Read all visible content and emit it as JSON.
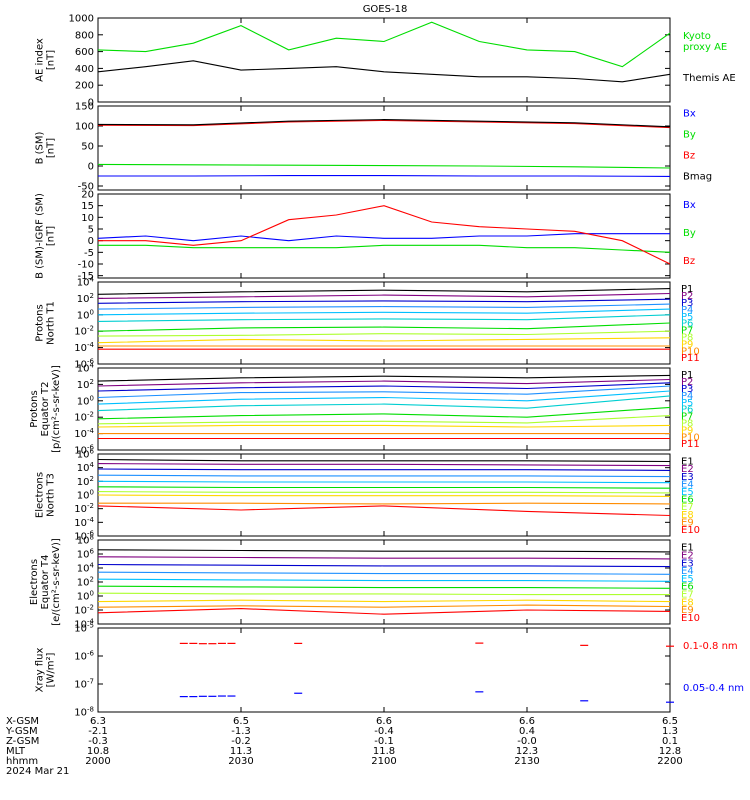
{
  "title": "GOES-18",
  "date": "2024 Mar 21",
  "colors": {
    "black": "#000000",
    "red": "#ff0000",
    "green": "#00dd00",
    "blue": "#0000ff"
  },
  "chart_data": [
    {
      "type": "line",
      "ylabel": [
        "AE index",
        "[nT]"
      ],
      "ylim": [
        0,
        1000
      ],
      "yticks": [
        "0",
        "200",
        "400",
        "600",
        "800",
        "1000"
      ],
      "tick_values": [
        0,
        200,
        400,
        600,
        800,
        1000
      ],
      "x": [
        0,
        5,
        10,
        15,
        20,
        25,
        30,
        35,
        40,
        45,
        50,
        55,
        60
      ],
      "series": [
        {
          "name": "Kyoto proxy AE",
          "label_lines": [
            "Kyoto",
            "proxy AE"
          ],
          "color": "#00dd00",
          "values": [
            620,
            600,
            700,
            910,
            620,
            760,
            720,
            950,
            720,
            620,
            600,
            420,
            820
          ]
        },
        {
          "name": "Themis AE",
          "label_lines": [
            "Themis AE"
          ],
          "color": "#000000",
          "values": [
            360,
            420,
            490,
            380,
            400,
            420,
            360,
            330,
            300,
            300,
            280,
            240,
            330
          ]
        }
      ]
    },
    {
      "type": "line",
      "ylabel": [
        "B (SM)",
        "[nT]"
      ],
      "ylim": [
        -60,
        150
      ],
      "yticks": [
        "-50",
        "0",
        "50",
        "100",
        "150"
      ],
      "tick_values": [
        -50,
        0,
        50,
        100,
        150
      ],
      "x": [
        0,
        10,
        20,
        30,
        40,
        50,
        60
      ],
      "series": [
        {
          "name": "Bx",
          "label_lines": [
            "Bx"
          ],
          "color": "#0000ff",
          "values": [
            -25,
            -25,
            -24,
            -24,
            -25,
            -25,
            -26
          ]
        },
        {
          "name": "By",
          "label_lines": [
            "By"
          ],
          "color": "#00dd00",
          "values": [
            4,
            3,
            2,
            1,
            0,
            -2,
            -5
          ]
        },
        {
          "name": "Bz",
          "label_lines": [
            "Bz"
          ],
          "color": "#ff0000",
          "values": [
            102,
            101,
            110,
            114,
            110,
            106,
            96
          ]
        },
        {
          "name": "Bmag",
          "label_lines": [
            "Bmag"
          ],
          "color": "#000000",
          "values": [
            104,
            103,
            112,
            116,
            112,
            108,
            98
          ]
        }
      ]
    },
    {
      "type": "line",
      "ylabel": [
        "B (SM)-IGRF (SM)",
        "[nT]"
      ],
      "ylim": [
        -16,
        20
      ],
      "yticks": [
        "-15",
        "-10",
        "-5",
        "0",
        "5",
        "10",
        "15",
        "20"
      ],
      "tick_values": [
        -15,
        -10,
        -5,
        0,
        5,
        10,
        15,
        20
      ],
      "x": [
        0,
        5,
        10,
        15,
        20,
        25,
        30,
        35,
        40,
        45,
        50,
        55,
        60
      ],
      "series": [
        {
          "name": "Bx",
          "label_lines": [
            "Bx"
          ],
          "color": "#0000ff",
          "values": [
            1,
            2,
            0,
            2,
            0,
            2,
            1,
            1,
            2,
            2,
            3,
            3,
            3
          ]
        },
        {
          "name": "By",
          "label_lines": [
            "By"
          ],
          "color": "#00dd00",
          "values": [
            -2,
            -2,
            -3,
            -3,
            -3,
            -3,
            -2,
            -2,
            -2,
            -3,
            -3,
            -4,
            -5
          ]
        },
        {
          "name": "Bz",
          "label_lines": [
            "Bz"
          ],
          "color": "#ff0000",
          "values": [
            0,
            0,
            -2,
            0,
            9,
            11,
            15,
            8,
            6,
            5,
            4,
            0,
            -10
          ]
        }
      ]
    },
    {
      "type": "line",
      "logscale": true,
      "ylabel": [
        "Protons",
        "North T1"
      ],
      "ylim": [
        -6,
        4
      ],
      "yticks": [
        "10^4",
        "10^2",
        "10^0",
        "10^-2",
        "10^-4",
        "10^-6"
      ],
      "tick_values": [
        4,
        2,
        0,
        -2,
        -4,
        -6
      ],
      "x": [
        0,
        15,
        30,
        45,
        60
      ],
      "series": [
        {
          "name": "P1",
          "color": "#000000",
          "values": [
            2.5,
            2.8,
            3.0,
            2.8,
            3.2
          ]
        },
        {
          "name": "P2",
          "color": "#800080",
          "values": [
            2.0,
            2.2,
            2.4,
            2.2,
            2.6
          ]
        },
        {
          "name": "P3",
          "color": "#0000cd",
          "values": [
            1.4,
            1.6,
            1.7,
            1.6,
            1.9
          ]
        },
        {
          "name": "P4",
          "color": "#1e90ff",
          "values": [
            0.7,
            0.9,
            1.0,
            0.9,
            1.3
          ]
        },
        {
          "name": "P5",
          "color": "#00bfff",
          "values": [
            0.0,
            0.2,
            0.3,
            0.2,
            0.7
          ]
        },
        {
          "name": "P6",
          "color": "#00ced1",
          "values": [
            -0.8,
            -0.6,
            -0.5,
            -0.6,
            0.0
          ]
        },
        {
          "name": "P7",
          "color": "#00dd00",
          "values": [
            -2.0,
            -1.6,
            -1.5,
            -1.7,
            -1.0
          ]
        },
        {
          "name": "P8",
          "color": "#adff2f",
          "values": [
            -2.6,
            -2.5,
            -2.3,
            -2.4,
            -2.0
          ]
        },
        {
          "name": "P9",
          "color": "#ffd700",
          "values": [
            -3.4,
            -3.0,
            -3.2,
            -3.0,
            -2.8
          ]
        },
        {
          "name": "P10",
          "color": "#ff8c00",
          "values": [
            -3.8,
            -3.8,
            -3.8,
            -3.8,
            -3.8
          ]
        },
        {
          "name": "P11",
          "color": "#ff0000",
          "values": [
            -4.2,
            -4.2,
            -4.2,
            -4.2,
            -4.2
          ]
        }
      ]
    },
    {
      "type": "line",
      "logscale": true,
      "ylabel": [
        "Protons",
        "Equator T2",
        "[p/(cm²-s-sr-keV)]"
      ],
      "ylim": [
        -6,
        4
      ],
      "yticks": [
        "10^4",
        "10^2",
        "10^0",
        "10^-2",
        "10^-4",
        "10^-6"
      ],
      "tick_values": [
        4,
        2,
        0,
        -2,
        -4,
        -6
      ],
      "x": [
        0,
        15,
        30,
        45,
        60
      ],
      "series": [
        {
          "name": "P1",
          "color": "#000000",
          "values": [
            2.4,
            2.8,
            3.0,
            2.8,
            3.1
          ]
        },
        {
          "name": "P2",
          "color": "#800080",
          "values": [
            1.8,
            2.2,
            2.4,
            2.1,
            2.6
          ]
        },
        {
          "name": "P3",
          "color": "#0000cd",
          "values": [
            1.2,
            1.6,
            1.8,
            1.5,
            2.2
          ]
        },
        {
          "name": "P4",
          "color": "#1e90ff",
          "values": [
            0.4,
            1.0,
            1.1,
            0.8,
            1.8
          ]
        },
        {
          "name": "P5",
          "color": "#00bfff",
          "values": [
            -0.4,
            0.2,
            0.4,
            0.0,
            1.2
          ]
        },
        {
          "name": "P6",
          "color": "#00ced1",
          "values": [
            -1.2,
            -0.6,
            -0.4,
            -0.9,
            0.6
          ]
        },
        {
          "name": "P7",
          "color": "#00dd00",
          "values": [
            -2.2,
            -1.8,
            -1.6,
            -2.0,
            -0.8
          ]
        },
        {
          "name": "P8",
          "color": "#adff2f",
          "values": [
            -2.8,
            -2.6,
            -2.5,
            -2.7,
            -1.8
          ]
        },
        {
          "name": "P9",
          "color": "#ffd700",
          "values": [
            -3.2,
            -3.0,
            -3.0,
            -3.2,
            -3.0
          ]
        },
        {
          "name": "P10",
          "color": "#ff8c00",
          "values": [
            -4.0,
            -4.0,
            -4.0,
            -4.0,
            -4.0
          ]
        },
        {
          "name": "P11",
          "color": "#ff0000",
          "values": [
            -4.6,
            -4.6,
            -4.6,
            -4.6,
            -4.6
          ]
        }
      ]
    },
    {
      "type": "line",
      "logscale": true,
      "ylabel": [
        "Electrons",
        "North T3"
      ],
      "ylim": [
        -6,
        6
      ],
      "yticks": [
        "10^6",
        "10^4",
        "10^2",
        "10^0",
        "10^-2",
        "10^-4",
        "10^-6"
      ],
      "tick_values": [
        6,
        4,
        2,
        0,
        -2,
        -4,
        -6
      ],
      "x": [
        0,
        15,
        30,
        45,
        60
      ],
      "series": [
        {
          "name": "E1",
          "color": "#000000",
          "values": [
            5.2,
            5.0,
            5.0,
            5.0,
            4.9
          ]
        },
        {
          "name": "E2",
          "color": "#800080",
          "values": [
            4.6,
            4.5,
            4.5,
            4.4,
            4.3
          ]
        },
        {
          "name": "E3",
          "color": "#0000cd",
          "values": [
            3.8,
            3.7,
            3.7,
            3.7,
            3.6
          ]
        },
        {
          "name": "E4",
          "color": "#1e90ff",
          "values": [
            2.9,
            2.8,
            2.8,
            2.8,
            2.7
          ]
        },
        {
          "name": "E5",
          "color": "#00bfff",
          "values": [
            2.0,
            1.9,
            1.9,
            1.9,
            1.8
          ]
        },
        {
          "name": "E6",
          "color": "#00dd00",
          "values": [
            1.2,
            1.1,
            1.1,
            1.1,
            1.0
          ]
        },
        {
          "name": "E7",
          "color": "#adff2f",
          "values": [
            0.5,
            0.4,
            0.4,
            0.4,
            0.3
          ]
        },
        {
          "name": "E8",
          "color": "#ffd700",
          "values": [
            0.0,
            -0.1,
            -0.1,
            -0.1,
            -0.2
          ]
        },
        {
          "name": "E9",
          "color": "#ff8c00",
          "values": [
            -1.2,
            -1.2,
            -1.3,
            -1.2,
            -1.3
          ]
        },
        {
          "name": "E10",
          "color": "#ff0000",
          "values": [
            -1.6,
            -2.2,
            -1.6,
            -2.4,
            -3.0
          ]
        }
      ]
    },
    {
      "type": "line",
      "logscale": true,
      "ylabel": [
        "Electrons",
        "Equator T4",
        "[e/(cm²-s-sr-keV)]"
      ],
      "ylim": [
        -4,
        8
      ],
      "yticks": [
        "10^8",
        "10^6",
        "10^4",
        "10^2",
        "10^0",
        "10^-2",
        "10^-4"
      ],
      "tick_values": [
        8,
        6,
        4,
        2,
        0,
        -2,
        -4
      ],
      "x": [
        0,
        15,
        30,
        45,
        60
      ],
      "series": [
        {
          "name": "E1",
          "color": "#000000",
          "values": [
            6.6,
            6.5,
            6.4,
            6.4,
            6.3
          ]
        },
        {
          "name": "E2",
          "color": "#800080",
          "values": [
            5.6,
            5.5,
            5.4,
            5.4,
            5.3
          ]
        },
        {
          "name": "E3",
          "color": "#0000cd",
          "values": [
            4.5,
            4.4,
            4.3,
            4.3,
            4.2
          ]
        },
        {
          "name": "E4",
          "color": "#1e90ff",
          "values": [
            3.4,
            3.3,
            3.2,
            3.2,
            3.1
          ]
        },
        {
          "name": "E5",
          "color": "#00bfff",
          "values": [
            2.4,
            2.3,
            2.2,
            2.2,
            2.1
          ]
        },
        {
          "name": "E6",
          "color": "#00dd00",
          "values": [
            1.4,
            1.3,
            1.2,
            1.2,
            1.1
          ]
        },
        {
          "name": "E7",
          "color": "#adff2f",
          "values": [
            0.4,
            0.3,
            0.3,
            0.2,
            0.2
          ]
        },
        {
          "name": "E8",
          "color": "#ffd700",
          "values": [
            -0.8,
            -0.6,
            -0.8,
            -0.6,
            -0.8
          ]
        },
        {
          "name": "E9",
          "color": "#ff8c00",
          "values": [
            -1.6,
            -1.4,
            -1.6,
            -1.3,
            -1.5
          ]
        },
        {
          "name": "E10",
          "color": "#ff0000",
          "values": [
            -2.4,
            -1.8,
            -2.6,
            -2.0,
            -2.2
          ]
        }
      ]
    },
    {
      "type": "scatter",
      "logscale": true,
      "ylabel": [
        "Xray flux",
        "[W/m²]"
      ],
      "ylim": [
        -8,
        -5
      ],
      "yticks": [
        "10^-5",
        "10^-6",
        "10^-7",
        "10^-8"
      ],
      "tick_values": [
        -5,
        -6,
        -7,
        -8
      ],
      "series": [
        {
          "name": "0.1-0.8 nm",
          "label_lines": [
            "0.1-0.8 nm"
          ],
          "color": "#ff0000",
          "x": [
            9,
            10,
            11,
            12,
            13,
            14,
            21,
            40,
            51,
            60
          ],
          "values": [
            -5.55,
            -5.55,
            -5.56,
            -5.56,
            -5.55,
            -5.55,
            -5.55,
            -5.54,
            -5.62,
            -5.65
          ]
        },
        {
          "name": "0.05-0.4 nm",
          "label_lines": [
            "0.05-0.4 nm"
          ],
          "color": "#0000ff",
          "x": [
            9,
            10,
            11,
            12,
            13,
            14,
            21,
            40,
            51,
            60
          ],
          "values": [
            -7.45,
            -7.45,
            -7.44,
            -7.44,
            -7.43,
            -7.43,
            -7.33,
            -7.28,
            -7.6,
            -7.65
          ]
        }
      ]
    }
  ],
  "ephemeris": {
    "labels": [
      "X-GSM",
      "Y-GSM",
      "Z-GSM",
      "MLT",
      "hhmm",
      "2024 Mar 21"
    ],
    "x": [
      0,
      15,
      30,
      45,
      60
    ],
    "columns": [
      [
        "6.3",
        "-2.1",
        "-0.3",
        "10.8",
        "2000"
      ],
      [
        "6.5",
        "-1.3",
        "-0.2",
        "11.3",
        "2030"
      ],
      [
        "6.6",
        "-0.4",
        "-0.1",
        "11.8",
        "2100"
      ],
      [
        "6.6",
        "0.4",
        "-0.0",
        "12.3",
        "2130"
      ],
      [
        "6.5",
        "1.3",
        "0.1",
        "12.8",
        "2200"
      ]
    ]
  }
}
